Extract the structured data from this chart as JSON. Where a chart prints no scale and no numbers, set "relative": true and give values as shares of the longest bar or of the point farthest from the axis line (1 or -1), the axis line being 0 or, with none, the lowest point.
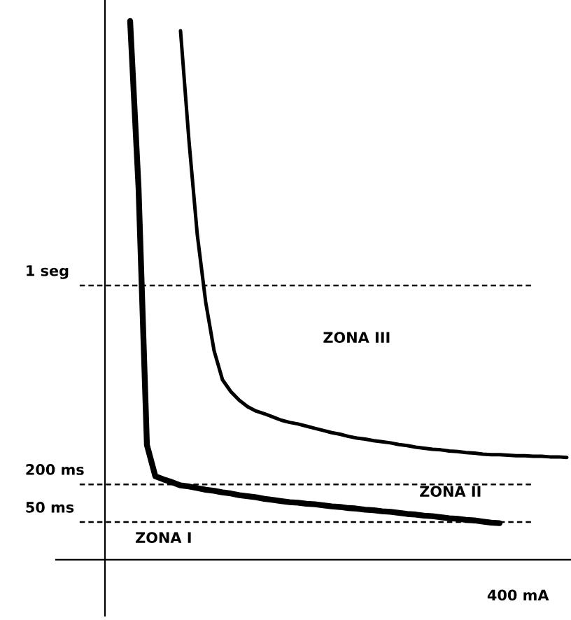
{
  "chart_data": {
    "type": "line",
    "relative": true,
    "xlabel": "400 mA",
    "categories": [
      null,
      null,
      null,
      null,
      null,
      null,
      null,
      null,
      null,
      null,
      null,
      null,
      null,
      null,
      null,
      null,
      null,
      null,
      null,
      null,
      null,
      null,
      null,
      null,
      null,
      null,
      null,
      null,
      null,
      null,
      null,
      null,
      null,
      null,
      null,
      null,
      null,
      null,
      null,
      null,
      null,
      null,
      null,
      null,
      null,
      null,
      null,
      null,
      null,
      null,
      null,
      null,
      null
    ],
    "series": [
      {
        "color": "#000000",
        "values": [
          1.0,
          0.691,
          0.213,
          0.155,
          0.149,
          0.144,
          0.138,
          0.136,
          0.133,
          0.13,
          0.128,
          0.125,
          0.123,
          0.12,
          0.118,
          0.116,
          0.113,
          0.111,
          0.109,
          0.107,
          0.106,
          0.104,
          0.103,
          0.101,
          0.099,
          0.098,
          0.096,
          0.095,
          0.093,
          0.092,
          0.09,
          0.089,
          0.087,
          0.085,
          0.084,
          0.082,
          0.081,
          0.079,
          0.077,
          0.076,
          0.074,
          0.073,
          0.071,
          0.069,
          0.068,
          null,
          null,
          null,
          null,
          null,
          null,
          null,
          null
        ]
      },
      {
        "color": "#000000",
        "values": [
          null,
          null,
          null,
          null,
          null,
          null,
          0.982,
          0.779,
          0.603,
          0.478,
          0.388,
          0.334,
          0.312,
          0.296,
          0.284,
          0.276,
          0.271,
          0.265,
          0.259,
          0.255,
          0.252,
          0.248,
          0.244,
          0.24,
          0.236,
          0.233,
          0.229,
          0.226,
          0.224,
          0.221,
          0.219,
          0.217,
          0.214,
          0.212,
          0.209,
          0.207,
          0.205,
          0.204,
          0.202,
          0.201,
          0.199,
          0.198,
          0.196,
          0.195,
          0.195,
          0.194,
          0.193,
          0.193,
          0.192,
          0.192,
          0.191,
          0.191,
          0.19
        ]
      }
    ],
    "ref_lines": [
      {
        "axis": "y",
        "value": 0.509,
        "label": "1 seg",
        "color": "#000000",
        "line_style": "dashed"
      },
      {
        "axis": "y",
        "value": 0.14,
        "label": "200 ms",
        "color": "#000000",
        "line_style": "dashed"
      },
      {
        "axis": "y",
        "value": 0.07,
        "label": "50 ms",
        "color": "#000000",
        "line_style": "dashed"
      }
    ],
    "annotations": [
      "ZONA III",
      "ZONA II",
      "ZONA I"
    ],
    "line_style": "solid",
    "marker": "none"
  }
}
